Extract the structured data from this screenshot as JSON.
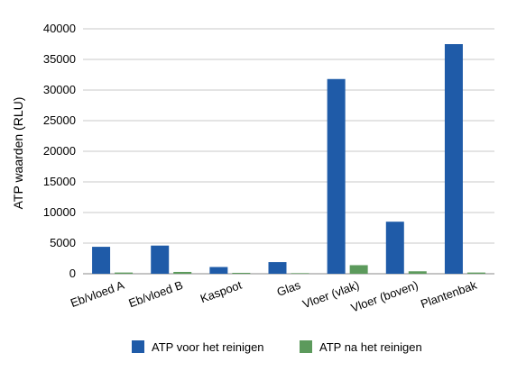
{
  "chart_data": {
    "type": "bar",
    "categories": [
      "Eb/vloed A",
      "Eb/vloed B",
      "Kaspoot",
      "Glas",
      "Vloer (vlak)",
      "Vloer (boven)",
      "Plantenbak"
    ],
    "series": [
      {
        "name": "ATP voor het reinigen",
        "color": "#1f5ba8",
        "values": [
          4400,
          4600,
          1100,
          1900,
          31800,
          8500,
          37500
        ]
      },
      {
        "name": "ATP na het reinigen",
        "color": "#5c9a5c",
        "values": [
          200,
          300,
          150,
          100,
          1400,
          400,
          200
        ]
      }
    ],
    "xlabel": "",
    "ylabel": "ATP waarden (RLU)",
    "ylim": [
      0,
      40000
    ],
    "yticks": [
      0,
      5000,
      10000,
      15000,
      20000,
      25000,
      30000,
      35000,
      40000
    ],
    "grid": true,
    "legend_position": "bottom"
  }
}
